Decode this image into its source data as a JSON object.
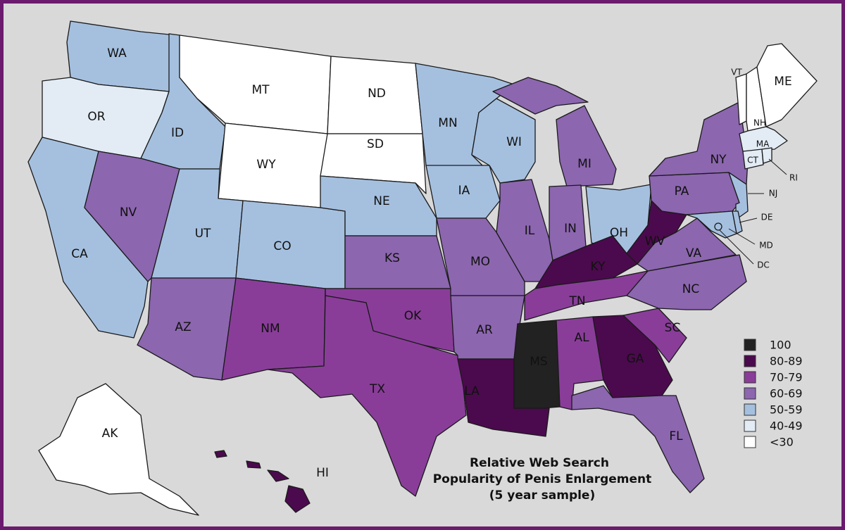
{
  "title_lines": [
    "Relative Web Search",
    "Popularity of Penis Enlargement",
    "(5 year sample)"
  ],
  "legend": [
    {
      "label": "100",
      "color": "#222222"
    },
    {
      "label": "80-89",
      "color": "#4b0a4d"
    },
    {
      "label": "70-79",
      "color": "#893d99"
    },
    {
      "label": "60-69",
      "color": "#8c66af"
    },
    {
      "label": "50-59",
      "color": "#a5c0df"
    },
    {
      "label": "40-49",
      "color": "#e3ecf5"
    },
    {
      "label": "<30",
      "color": "#ffffff"
    }
  ],
  "states": [
    {
      "label": "WA",
      "color": "#a5c0df"
    },
    {
      "label": "OR",
      "color": "#e3ecf5"
    },
    {
      "label": "CA",
      "color": "#a5c0df"
    },
    {
      "label": "ID",
      "color": "#a5c0df"
    },
    {
      "label": "NV",
      "color": "#8c66af"
    },
    {
      "label": "MT",
      "color": "#ffffff"
    },
    {
      "label": "WY",
      "color": "#ffffff"
    },
    {
      "label": "UT",
      "color": "#a5c0df"
    },
    {
      "label": "CO",
      "color": "#a5c0df"
    },
    {
      "label": "AZ",
      "color": "#8c66af"
    },
    {
      "label": "NM",
      "color": "#893d99"
    },
    {
      "label": "ND",
      "color": "#ffffff"
    },
    {
      "label": "SD",
      "color": "#ffffff"
    },
    {
      "label": "NE",
      "color": "#a5c0df"
    },
    {
      "label": "KS",
      "color": "#8c66af"
    },
    {
      "label": "OK",
      "color": "#893d99"
    },
    {
      "label": "TX",
      "color": "#893d99"
    },
    {
      "label": "MN",
      "color": "#a5c0df"
    },
    {
      "label": "IA",
      "color": "#a5c0df"
    },
    {
      "label": "MO",
      "color": "#8c66af"
    },
    {
      "label": "AR",
      "color": "#8c66af"
    },
    {
      "label": "LA",
      "color": "#4b0a4d"
    },
    {
      "label": "WI",
      "color": "#a5c0df"
    },
    {
      "label": "IL",
      "color": "#8c66af"
    },
    {
      "label": "MI",
      "color": "#8c66af"
    },
    {
      "label": "IN",
      "color": "#8c66af"
    },
    {
      "label": "OH",
      "color": "#a5c0df"
    },
    {
      "label": "KY",
      "color": "#4b0a4d"
    },
    {
      "label": "TN",
      "color": "#893d99"
    },
    {
      "label": "MS",
      "color": "#222222"
    },
    {
      "label": "AL",
      "color": "#893d99"
    },
    {
      "label": "GA",
      "color": "#4b0a4d"
    },
    {
      "label": "FL",
      "color": "#8c66af"
    },
    {
      "label": "SC",
      "color": "#893d99"
    },
    {
      "label": "NC",
      "color": "#8c66af"
    },
    {
      "label": "VA",
      "color": "#8c66af"
    },
    {
      "label": "WV",
      "color": "#4b0a4d"
    },
    {
      "label": "PA",
      "color": "#8c66af"
    },
    {
      "label": "NY",
      "color": "#8c66af"
    },
    {
      "label": "NJ",
      "color": "#a5c0df"
    },
    {
      "label": "DE",
      "color": "#a5c0df"
    },
    {
      "label": "MD",
      "color": "#a5c0df"
    },
    {
      "label": "DC",
      "color": "#a5c0df"
    },
    {
      "label": "VT",
      "color": "#ffffff"
    },
    {
      "label": "NH",
      "color": "#ffffff"
    },
    {
      "label": "ME",
      "color": "#ffffff"
    },
    {
      "label": "MA",
      "color": "#e3ecf5"
    },
    {
      "label": "CT",
      "color": "#e3ecf5"
    },
    {
      "label": "RI",
      "color": "#e3ecf5"
    },
    {
      "label": "AK",
      "color": "#ffffff"
    },
    {
      "label": "HI",
      "color": "#4b0a4d"
    }
  ]
}
